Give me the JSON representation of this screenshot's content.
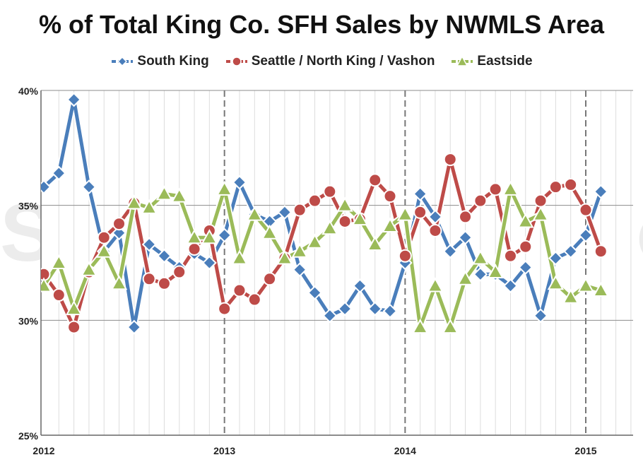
{
  "chart_data": {
    "type": "line",
    "title": "% of Total King Co. SFH Sales by NWMLS Area",
    "xlabel": "",
    "ylabel": "",
    "ylim": [
      25,
      40
    ],
    "y_ticks": [
      "25%",
      "30%",
      "35%",
      "40%"
    ],
    "y_tick_values": [
      25,
      30,
      35,
      40
    ],
    "x_ticks": [
      "2012",
      "2013",
      "2014",
      "2015"
    ],
    "x_tick_values": [
      0,
      12,
      24,
      36
    ],
    "xlim": [
      0,
      38.5
    ],
    "x_note": "months since Jan 2012",
    "grid": true,
    "legend": "top",
    "watermark": "SeattleBubble.com",
    "series": [
      {
        "name": "South King",
        "color": "#4a7ebb",
        "marker": "diamond",
        "values": [
          35.8,
          36.4,
          39.6,
          35.8,
          33.0,
          33.8,
          29.7,
          33.3,
          32.8,
          32.3,
          32.9,
          32.5,
          33.7,
          36.0,
          34.6,
          34.3,
          34.7,
          32.2,
          31.2,
          30.2,
          30.5,
          31.5,
          30.5,
          30.4,
          32.5,
          35.5,
          34.5,
          33.0,
          33.6,
          32.0,
          32.0,
          31.5,
          32.3,
          30.2,
          32.7,
          33.0,
          33.7,
          35.6
        ]
      },
      {
        "name": "Seattle / North King / Vashon",
        "color": "#be4b48",
        "marker": "circle",
        "values": [
          32.0,
          31.1,
          29.7,
          32.1,
          33.6,
          34.2,
          35.1,
          31.8,
          31.6,
          32.1,
          33.1,
          33.9,
          30.5,
          31.3,
          30.9,
          31.8,
          32.7,
          34.8,
          35.2,
          35.6,
          34.3,
          34.4,
          36.1,
          35.4,
          32.8,
          34.7,
          33.9,
          37.0,
          34.5,
          35.2,
          35.7,
          32.8,
          33.2,
          35.2,
          35.8,
          35.9,
          34.8,
          33.0
        ]
      },
      {
        "name": "Eastside",
        "color": "#9bbb59",
        "marker": "triangle",
        "values": [
          31.5,
          32.5,
          30.5,
          32.2,
          33.0,
          31.6,
          35.1,
          34.9,
          35.5,
          35.4,
          33.6,
          33.6,
          35.7,
          32.7,
          34.6,
          33.8,
          32.7,
          33.0,
          33.4,
          34.0,
          35.0,
          34.4,
          33.3,
          34.1,
          34.6,
          29.7,
          31.5,
          29.7,
          31.8,
          32.7,
          32.1,
          35.7,
          34.3,
          34.6,
          31.6,
          31.0,
          31.5,
          31.3
        ]
      }
    ]
  }
}
